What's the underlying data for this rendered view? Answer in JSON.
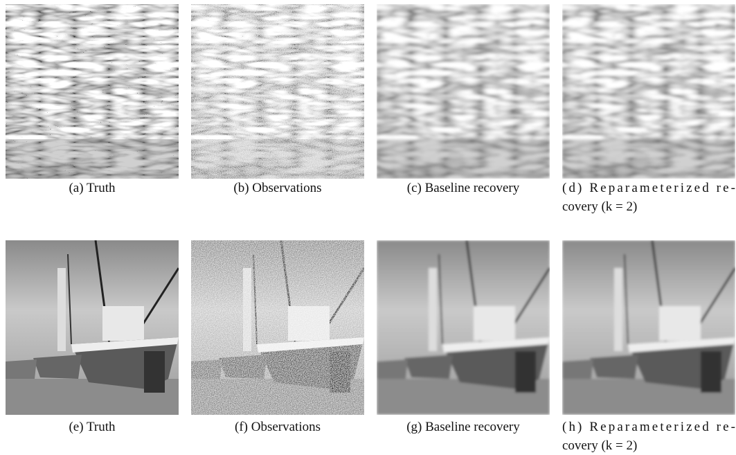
{
  "panels": [
    {
      "caption": [
        "(a) Truth"
      ]
    },
    {
      "caption": [
        "(b) Observations"
      ]
    },
    {
      "caption": [
        "(c) Baseline recovery"
      ]
    },
    {
      "caption": [
        "(d) Reparameterized re-",
        "covery (k = 2)"
      ]
    },
    {
      "caption": [
        "(e) Truth"
      ]
    },
    {
      "caption": [
        "(f) Observations"
      ]
    },
    {
      "caption": [
        "(g) Baseline recovery"
      ]
    },
    {
      "caption": [
        "(h) Reparameterized re-",
        "covery (k = 2)"
      ]
    }
  ]
}
